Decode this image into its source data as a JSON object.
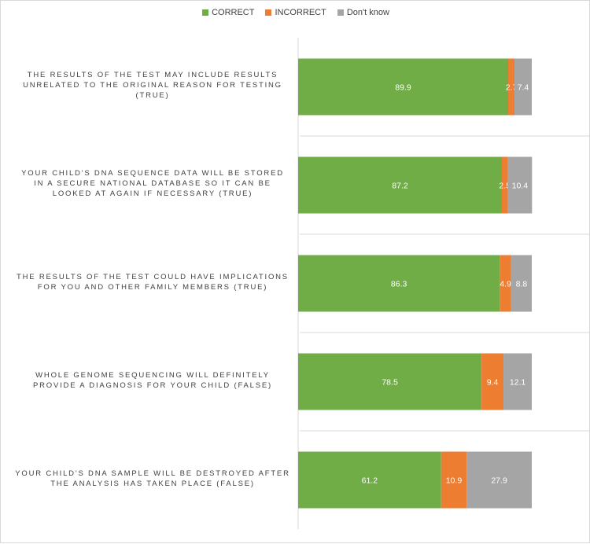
{
  "chart_data": {
    "type": "bar",
    "orientation": "horizontal",
    "stacked": true,
    "categories": [
      "THE RESULTS OF THE TEST MAY INCLUDE RESULTS UNRELATED TO THE ORIGINAL REASON FOR TESTING (TRUE)",
      "YOUR CHILD'S DNA SEQUENCE DATA WILL BE STORED IN A SECURE NATIONAL DATABASE SO IT CAN BE LOOKED AT AGAIN IF NECESSARY (TRUE)",
      "THE RESULTS OF THE TEST COULD HAVE IMPLICATIONS FOR YOU AND OTHER FAMILY MEMBERS (TRUE)",
      "WHOLE GENOME SEQUENCING WILL DEFINITELY PROVIDE A DIAGNOSIS FOR YOUR CHILD (FALSE)",
      "YOUR CHILD'S DNA SAMPLE WILL BE DESTROYED AFTER THE ANALYSIS HAS TAKEN PLACE (FALSE)"
    ],
    "series": [
      {
        "name": "CORRECT",
        "color": "#70ad47",
        "values": [
          89.9,
          87.2,
          86.3,
          78.5,
          61.2
        ]
      },
      {
        "name": "INCORRECT",
        "color": "#ed7d31",
        "values": [
          2.7,
          2.5,
          4.9,
          9.4,
          10.9
        ]
      },
      {
        "name": "Don't know",
        "color": "#a5a5a5",
        "values": [
          7.4,
          10.4,
          8.8,
          12.1,
          27.9
        ]
      }
    ],
    "xlim": [
      0,
      100
    ],
    "title": "",
    "xlabel": "",
    "ylabel": "",
    "legend_position": "top",
    "grid": false,
    "data_labels": true
  }
}
